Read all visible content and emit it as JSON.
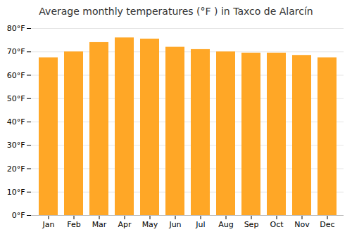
{
  "chart_data": {
    "type": "bar",
    "title": "Average monthly temperatures (°F ) in Taxco de Alarcín",
    "categories": [
      "Jan",
      "Feb",
      "Mar",
      "Apr",
      "May",
      "Jun",
      "Jul",
      "Aug",
      "Sep",
      "Oct",
      "Nov",
      "Dec"
    ],
    "values": [
      67.5,
      70.0,
      74.0,
      76.0,
      75.5,
      72.0,
      71.0,
      70.0,
      69.5,
      69.5,
      68.5,
      67.5
    ],
    "color": "#FFA726",
    "ylim": [
      0,
      80
    ],
    "yticks": [
      {
        "value": 0,
        "label": "0°F"
      },
      {
        "value": 10,
        "label": "10°F"
      },
      {
        "value": 20,
        "label": "20°F"
      },
      {
        "value": 30,
        "label": "30°F"
      },
      {
        "value": 40,
        "label": "40°F"
      },
      {
        "value": 50,
        "label": "50°F"
      },
      {
        "value": 60,
        "label": "60°F"
      },
      {
        "value": 70,
        "label": "70°F"
      },
      {
        "value": 80,
        "label": "80°F"
      }
    ],
    "grid": true
  }
}
